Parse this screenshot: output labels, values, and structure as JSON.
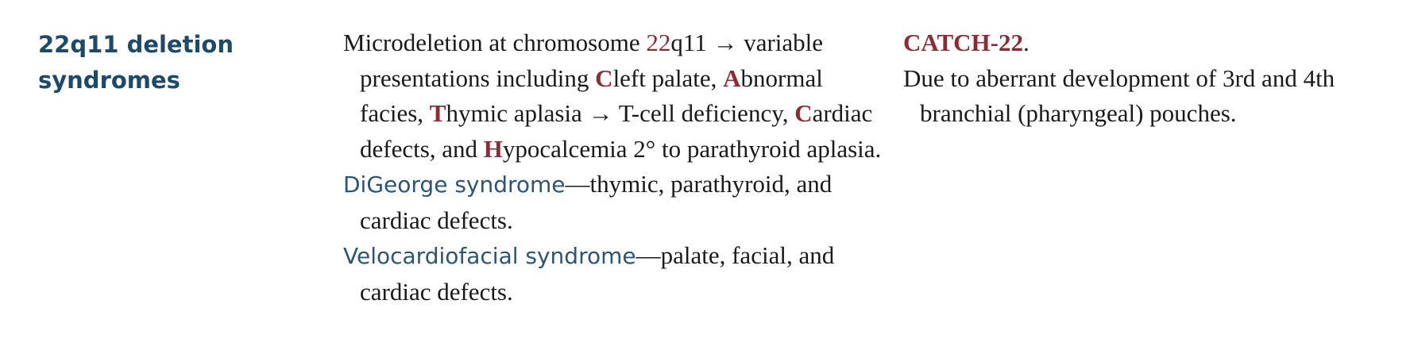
{
  "section": {
    "title": "22q11 deletion syndromes"
  },
  "main": {
    "p1": {
      "s1": "Microdeletion at chromosome ",
      "chrom": "22",
      "s2": "q11 → variable presentations including ",
      "l1": "C",
      "s3": "left palate, ",
      "l2": "A",
      "s4": "bnormal facies, ",
      "l3": "T",
      "s5": "hymic aplasia → T-cell deficiency, ",
      "l4": "C",
      "s6": "ardiac defects, and ",
      "l5": "H",
      "s7": "ypocalcemia 2° to parathyroid aplasia."
    },
    "p2": {
      "term": "DiGeorge syndrome",
      "text": "—thymic, parathyroid, and cardiac defects."
    },
    "p3": {
      "term": "Velocardiofacial syndrome",
      "text": "—palate, facial, and cardiac defects."
    }
  },
  "note": {
    "mnemonic": "CATCH-22",
    "mnemonic_suffix": ".",
    "text": "Due to aberrant development of 3rd and 4th branchial (pharyngeal) pouches."
  },
  "colors": {
    "heading": "#1c4a68",
    "term": "#2c5476",
    "highlight": "#8e2a34"
  }
}
